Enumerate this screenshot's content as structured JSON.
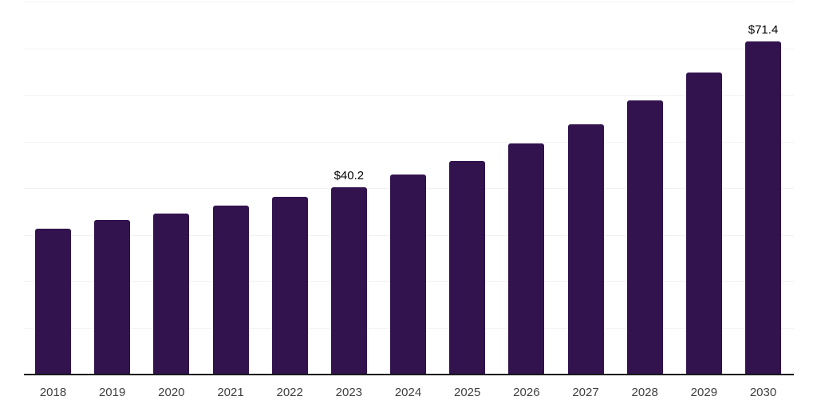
{
  "chart_data": {
    "type": "bar",
    "title": "",
    "xlabel": "",
    "ylabel": "",
    "categories": [
      "2018",
      "2019",
      "2020",
      "2021",
      "2022",
      "2023",
      "2024",
      "2025",
      "2026",
      "2027",
      "2028",
      "2029",
      "2030"
    ],
    "values": [
      31.3,
      33.2,
      34.6,
      36.3,
      38.1,
      40.2,
      42.9,
      45.9,
      49.5,
      53.6,
      58.8,
      64.8,
      71.4
    ],
    "value_labels": {
      "2023": "$40.2",
      "2030": "$71.4"
    },
    "ylim": [
      0,
      80
    ],
    "gridline_step": 10,
    "grid": "horizontal",
    "legend_position": "none",
    "y_tick_labels_visible": false,
    "colors": {
      "bar": "#32134E",
      "gridline": "#f2f2f2",
      "axis_line": "#1a1a1a",
      "tick_label": "#404040",
      "value_label": "#000000",
      "background": "#ffffff"
    }
  }
}
